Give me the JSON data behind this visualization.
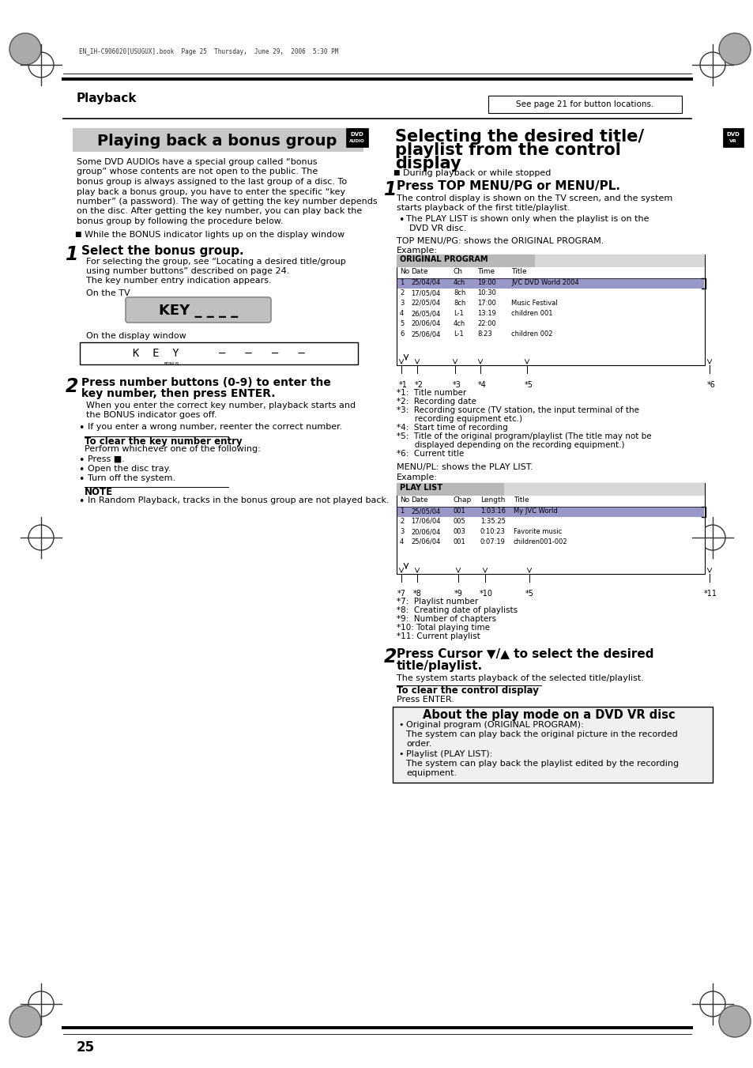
{
  "bg_color": "#ffffff",
  "page_num": "25",
  "header_text": "Playback",
  "header_note": "See page 21 for button locations.",
  "file_info": "EN_IH-C906020[USUGUX].book  Page 25  Thursday,  June 29,  2006  5:30 PM",
  "left_section_title": "Playing back a bonus group",
  "right_section_line1": "Selecting the desired title/",
  "right_section_line2": "playlist from the control",
  "right_section_line3": "display",
  "about_title": "About the play mode on a DVD VR disc",
  "orig_rows": [
    [
      "1",
      "25/04/04",
      "4ch",
      "19:00",
      "JVC DVD World 2004"
    ],
    [
      "2",
      "17/05/04",
      "8ch",
      "10:30",
      ""
    ],
    [
      "3",
      "22/05/04",
      "8ch",
      "17:00",
      "Music Festival"
    ],
    [
      "4",
      "26/05/04",
      "L-1",
      "13:19",
      "children 001"
    ],
    [
      "5",
      "20/06/04",
      "4ch",
      "22:00",
      ""
    ],
    [
      "6",
      "25/06/04",
      "L-1",
      "8:23",
      "children 002"
    ]
  ],
  "pl_rows": [
    [
      "1",
      "25/05/04",
      "001",
      "1:03:16",
      "My JVC World"
    ],
    [
      "2",
      "17/06/04",
      "005",
      "1:35:25",
      ""
    ],
    [
      "3",
      "20/06/04",
      "003",
      "0:10:23",
      "Favorite music"
    ],
    [
      "4",
      "25/06/04",
      "001",
      "0:07:19",
      "children001-002"
    ]
  ]
}
